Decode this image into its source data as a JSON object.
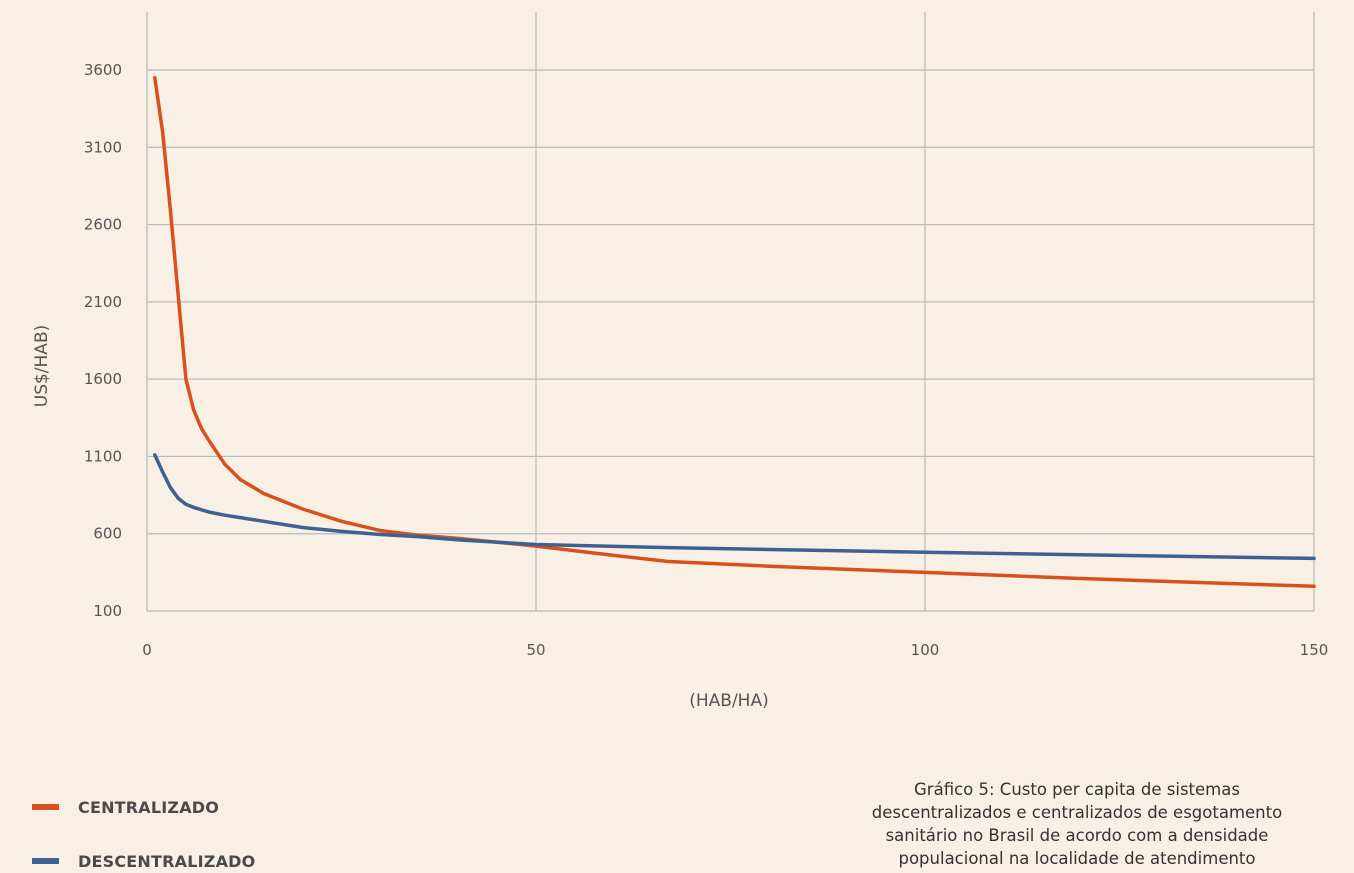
{
  "chart_data": {
    "type": "line",
    "title": "",
    "xlabel": "(HAB/HA)",
    "ylabel": "US$/HAB)",
    "xlim": [
      0,
      150
    ],
    "ylim": [
      100,
      3900
    ],
    "x_ticks": [
      0,
      50,
      100,
      150
    ],
    "y_ticks": [
      100,
      600,
      1100,
      1600,
      2100,
      2600,
      3100,
      3600
    ],
    "grid": true,
    "legend_position": "bottom-left",
    "series": [
      {
        "name": "CENTRALIZADO",
        "color": "#d9501e",
        "x": [
          1,
          2,
          3,
          4,
          5,
          6,
          7,
          8,
          10,
          12,
          15,
          20,
          25,
          30,
          35,
          40,
          45,
          50,
          60,
          67,
          80,
          100,
          120,
          150
        ],
        "y": [
          3550,
          3200,
          2700,
          2150,
          1600,
          1400,
          1280,
          1200,
          1050,
          950,
          860,
          760,
          680,
          620,
          590,
          570,
          545,
          520,
          460,
          420,
          390,
          350,
          310,
          260
        ]
      },
      {
        "name": "DESCENTRALIZADO",
        "color": "#3d6190",
        "x": [
          1,
          2,
          3,
          4,
          5,
          6,
          8,
          10,
          15,
          20,
          25,
          30,
          35,
          40,
          50,
          67,
          100,
          150
        ],
        "y": [
          1110,
          1000,
          900,
          830,
          790,
          770,
          740,
          720,
          680,
          640,
          615,
          595,
          580,
          560,
          530,
          510,
          480,
          440
        ]
      }
    ]
  },
  "legend": {
    "items": [
      {
        "label": "CENTRALIZADO",
        "color": "#d9501e"
      },
      {
        "label": "DESCENTRALIZADO",
        "color": "#3d6190"
      }
    ]
  },
  "caption": {
    "text": "Gráfico 5: Custo per capita de sistemas\ndescentralizados e centralizados de esgotamento\nsanitário no Brasil de acordo com a densidade\npopulacional na localidade de atendimento"
  }
}
